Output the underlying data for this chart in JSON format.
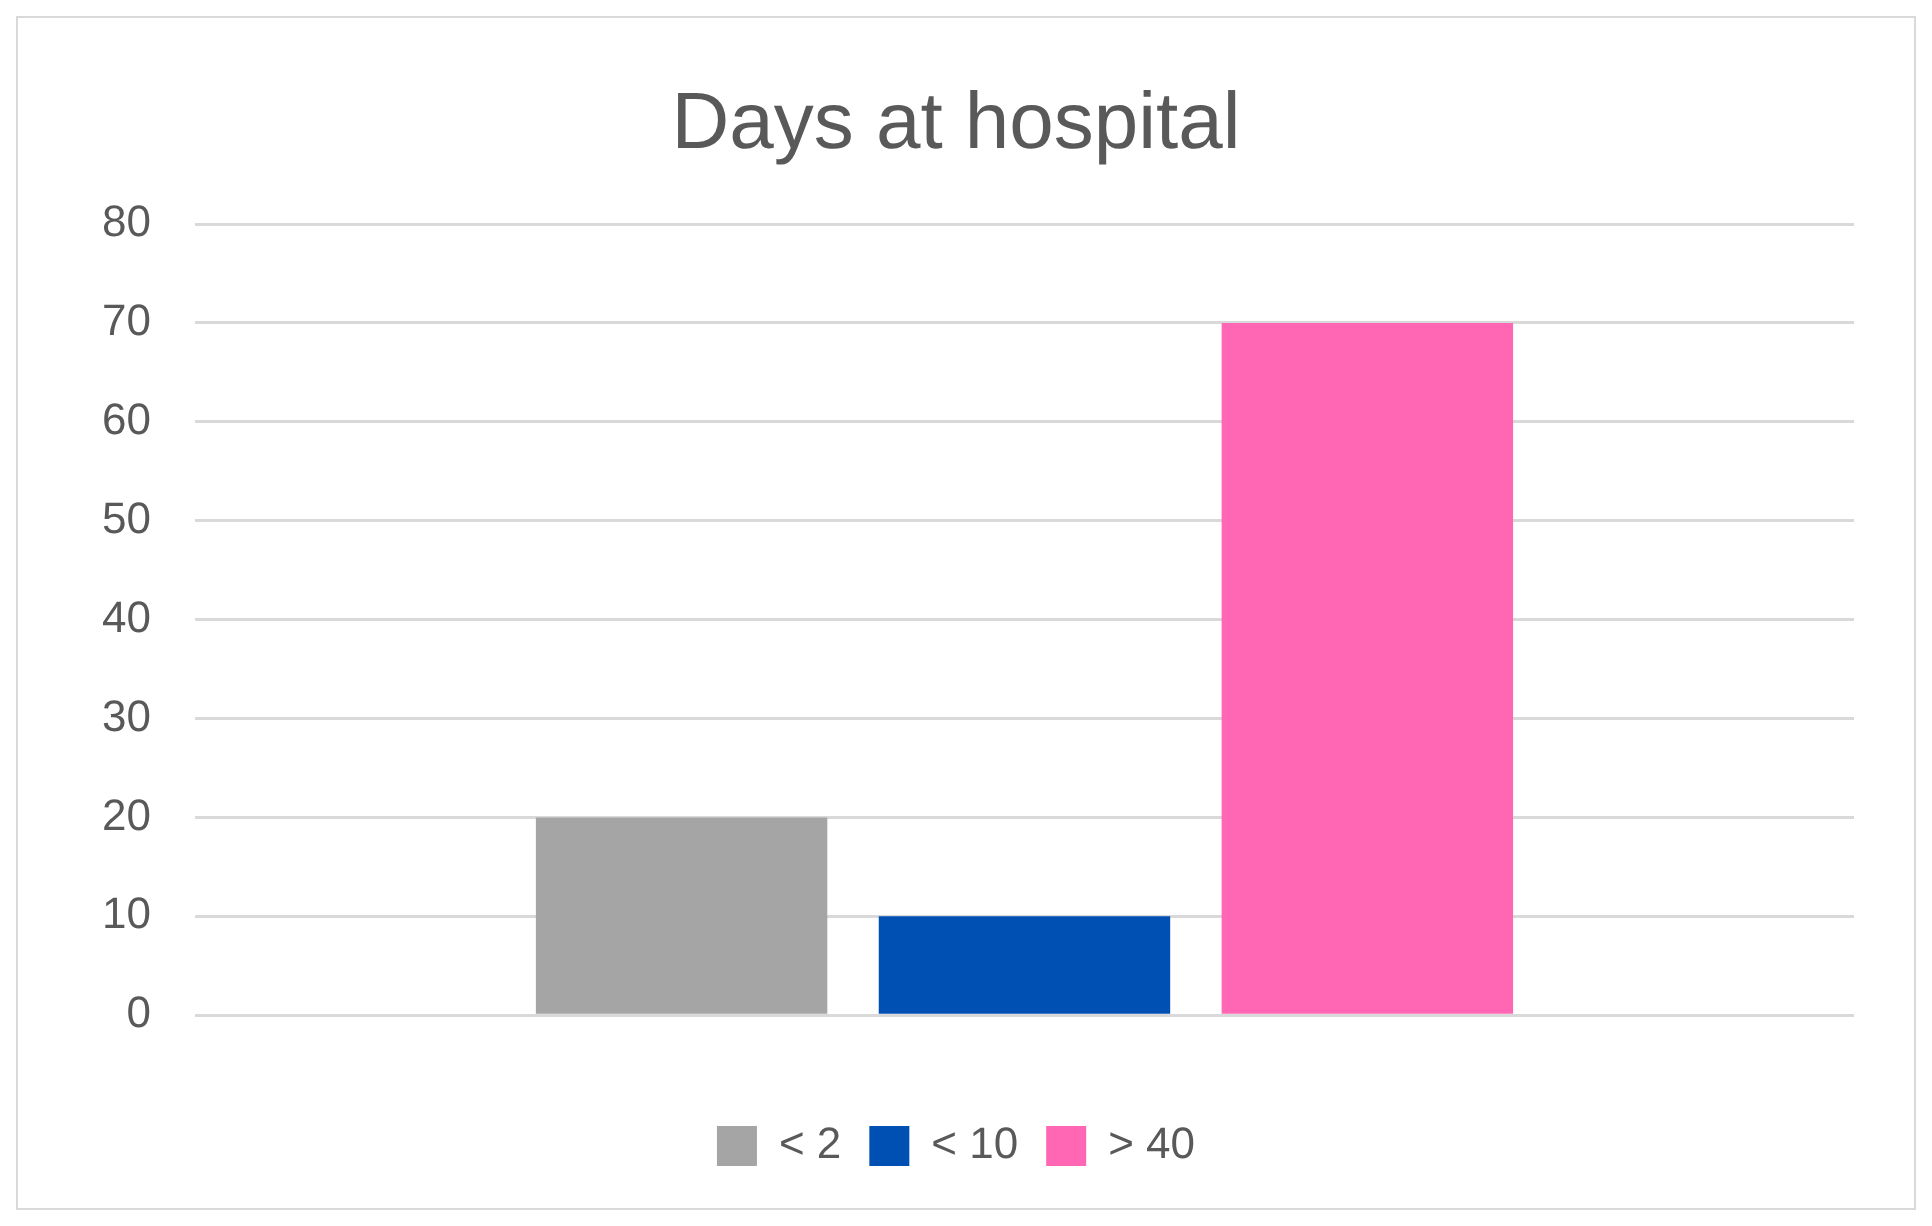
{
  "chart_data": {
    "type": "bar",
    "title": "Days at hospital",
    "categories": [
      null
    ],
    "series": [
      {
        "name": "< 2",
        "color": "#a5a5a5",
        "values": [
          20
        ]
      },
      {
        "name": "< 10",
        "color": "#0050b4",
        "values": [
          10
        ]
      },
      {
        "name": "> 40",
        "color": "#ff66b3",
        "values": [
          70
        ]
      }
    ],
    "ylim": [
      0,
      80
    ],
    "yticks": [
      0,
      10,
      20,
      30,
      40,
      50,
      60,
      70,
      80
    ],
    "grid": "y",
    "legend": "bottom"
  }
}
